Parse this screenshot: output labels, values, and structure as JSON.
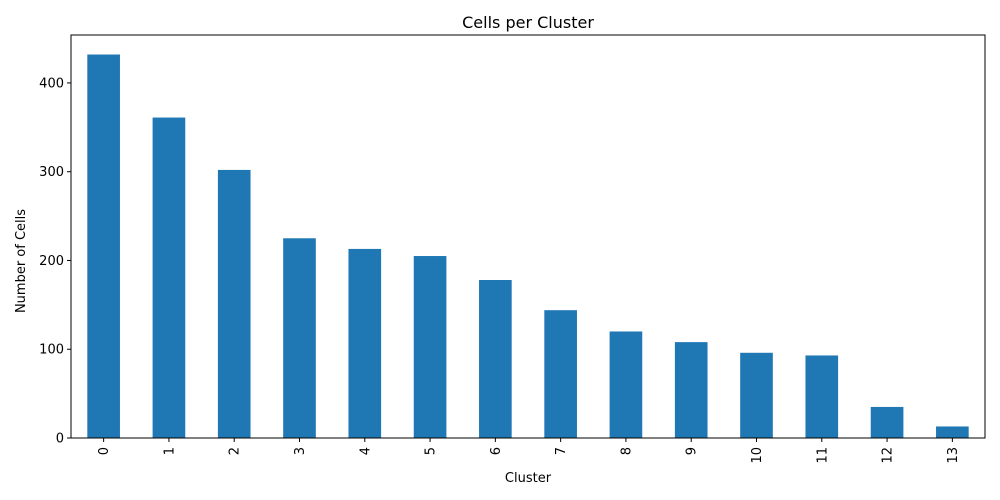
{
  "chart_data": {
    "type": "bar",
    "title": "Cells per Cluster",
    "xlabel": "Cluster",
    "ylabel": "Number of Cells",
    "categories": [
      "0",
      "1",
      "2",
      "3",
      "4",
      "5",
      "6",
      "7",
      "8",
      "9",
      "10",
      "11",
      "12",
      "13"
    ],
    "values": [
      432,
      361,
      302,
      225,
      213,
      205,
      178,
      144,
      120,
      108,
      96,
      93,
      35,
      13
    ],
    "ylim": [
      0,
      454
    ],
    "yticks": [
      0,
      100,
      200,
      300,
      400
    ],
    "bar_color": "#1f77b4",
    "grid": false,
    "legend": false
  }
}
